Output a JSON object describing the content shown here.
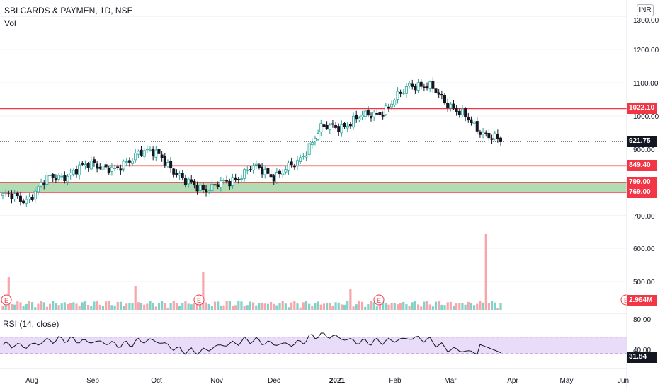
{
  "header": {
    "symbol_title": "SBI CARDS & PAYMEN, 1D, NSE",
    "volume_label": "Vol",
    "currency": "INR"
  },
  "price_axis": {
    "ticks": [
      "1300.00",
      "1200.00",
      "1100.00",
      "1000.00",
      "900.00",
      "700.00",
      "600.00",
      "500.00"
    ],
    "tick_values": [
      1300,
      1200,
      1100,
      1000,
      900,
      700,
      600,
      500
    ]
  },
  "levels": [
    {
      "label": "1022.10",
      "value": 1022.1,
      "color": "#f23645"
    },
    {
      "label": "921.75",
      "value": 921.75,
      "color": "#131722"
    },
    {
      "label": "849.40",
      "value": 849.4,
      "color": "#f23645"
    },
    {
      "label": "799.00",
      "value": 799,
      "color": "#f23645"
    },
    {
      "label": "769.00",
      "value": 769,
      "color": "#f23645"
    }
  ],
  "volume_badge": "2.964M",
  "rsi": {
    "title": "RSI (14, close)",
    "ticks": [
      "80.00",
      "40.00"
    ],
    "current": "31.84"
  },
  "time_axis": [
    "Aug",
    "Sep",
    "Oct",
    "Nov",
    "Dec",
    "2021",
    "Feb",
    "Mar",
    "Apr",
    "May",
    "Jun"
  ],
  "earnings_marker": "E",
  "colors": {
    "up": "#26a69a",
    "down": "#131722",
    "resistance": "#f23645",
    "zone_fill": "#a5d6a7",
    "volume_up": "#7fd3c8",
    "volume_down": "#f7a6ac",
    "rsi_band": "#e9dcf8",
    "rsi_line": "#131722"
  },
  "chart_data": {
    "type": "candlestick",
    "title": "SBI CARDS & PAYMEN, 1D, NSE",
    "ylim": [
      450,
      1330
    ],
    "horizontal_levels": [
      1022.1,
      849.4,
      799,
      769
    ],
    "support_zone": [
      769,
      799
    ],
    "last_price": 921.75,
    "close_path": [
      {
        "date": "Jul",
        "close": 760
      },
      {
        "date": "Aug",
        "close": 745
      },
      {
        "date": "Aug",
        "close": 810
      },
      {
        "date": "Sep",
        "close": 825
      },
      {
        "date": "Sep",
        "close": 860
      },
      {
        "date": "Oct",
        "close": 830
      },
      {
        "date": "Oct",
        "close": 895
      },
      {
        "date": "Oct",
        "close": 880
      },
      {
        "date": "Nov",
        "close": 800
      },
      {
        "date": "Nov",
        "close": 780
      },
      {
        "date": "Dec",
        "close": 800
      },
      {
        "date": "Dec",
        "close": 845
      },
      {
        "date": "Dec",
        "close": 820
      },
      {
        "date": "2021",
        "close": 855
      },
      {
        "date": "2021",
        "close": 960
      },
      {
        "date": "Jan",
        "close": 970
      },
      {
        "date": "Feb",
        "close": 1000
      },
      {
        "date": "Feb",
        "close": 1020
      },
      {
        "date": "Mar",
        "close": 1100
      },
      {
        "date": "Mar",
        "close": 1080
      },
      {
        "date": "Mar",
        "close": 1020
      },
      {
        "date": "Mar",
        "close": 960
      },
      {
        "date": "Mar",
        "close": 921.75
      }
    ],
    "volume_last": "2.964M",
    "rsi_last": 31.84
  }
}
